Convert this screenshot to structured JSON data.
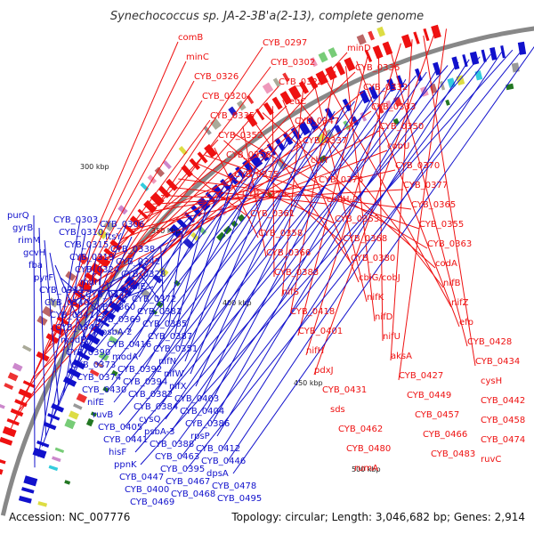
{
  "title": "Synechococcus sp. JA-2-3B'a(2-13), complete genome",
  "accession": "Accession: NC_007776",
  "topology": "Topology: circular; Length: 3,046,682 bp; Genes: 2,914",
  "tick_labels": [
    "300 kbp",
    "350 kbp",
    "400 kbp",
    "450 kbp",
    "500 kbp"
  ],
  "colors": {
    "forward": "#ee1111",
    "reverse": "#1111cc",
    "highlight": "#22bbee",
    "backbone": "#888888"
  },
  "forward_genes": [
    "comB",
    "CYB_0297",
    "minD",
    "minC",
    "CYB_0302",
    "CYB_0336",
    "CYB_0326",
    "CYB_0325",
    "CYB_0332",
    "CYB_0320",
    "leuC",
    "CYB_0333",
    "CYB_0335",
    "CYB_0347",
    "CYB_0350",
    "CYB_0352",
    "CYB_0337",
    "cobU",
    "CYB_0356",
    "cbiT",
    "CYB_0370",
    "CYB_0375",
    "CYB_0376",
    "CYB_0377",
    "CYB_0378",
    "cobH-2",
    "CYB_0365",
    "CYB_0361",
    "CYB_0353",
    "CYB_0355",
    "CYB_0358",
    "CYB_0368",
    "CYB_0363",
    "CYB_0366",
    "CYB_0380",
    "codA",
    "CYB_0383",
    "cbiG/cobJ",
    "nifB",
    "nifS",
    "nifK",
    "nifZ",
    "CYB_0418",
    "nifD",
    "efp",
    "CYB_0401",
    "nifU",
    "CYB_0428",
    "nifH",
    "aksA",
    "CYB_0434",
    "pdxJ",
    "CYB_0427",
    "cysH",
    "CYB_0431",
    "CYB_0449",
    "CYB_0442",
    "sds",
    "CYB_0457",
    "CYB_0458",
    "CYB_0462",
    "CYB_0466",
    "CYB_0474",
    "CYB_0480",
    "CYB_0483",
    "ruvC",
    "rumA"
  ],
  "reverse_genes": [
    "purQ",
    "CYB_0303",
    "CYB_0306",
    "gyrB",
    "CYB_0310",
    "ftsY",
    "rimM",
    "CYB_0315",
    "CYB_0338",
    "gcvH",
    "CYB_0319",
    "CYB_0342",
    "fba",
    "CYB_0324",
    "CYB_0328",
    "pyrF",
    "murI",
    "ubiE",
    "CYB_0331",
    "CYB_0349",
    "CYB_0372",
    "CYB_0340",
    "CYB_0360",
    "CYB_0381",
    "CYB_0341",
    "CYB_0369",
    "CYB_0385",
    "CYB_0345",
    "psbA-2",
    "CYB_0387",
    "modB",
    "CYB_0416",
    "CYB_0351",
    "CYB_0390",
    "modA",
    "nifN",
    "CYB_0373",
    "CYB_0392",
    "nifW",
    "CYB_0374",
    "CYB_0394",
    "nifX",
    "CYB_0430",
    "CYB_0382",
    "CYB_0403",
    "nifE",
    "CYB_0384",
    "CYB_0404",
    "ruvB",
    "cysQ",
    "CYB_0386",
    "CYB_0405",
    "psbA-3",
    "rpsP",
    "CYB_0441",
    "CYB_0388",
    "CYB_0412",
    "hisF",
    "CYB_0463",
    "CYB_0446",
    "ppnK",
    "CYB_0395",
    "dpsA",
    "CYB_0447",
    "CYB_0467",
    "CYB_0478",
    "CYB_0400",
    "CYB_0468",
    "CYB_0495",
    "CYB_0469"
  ]
}
